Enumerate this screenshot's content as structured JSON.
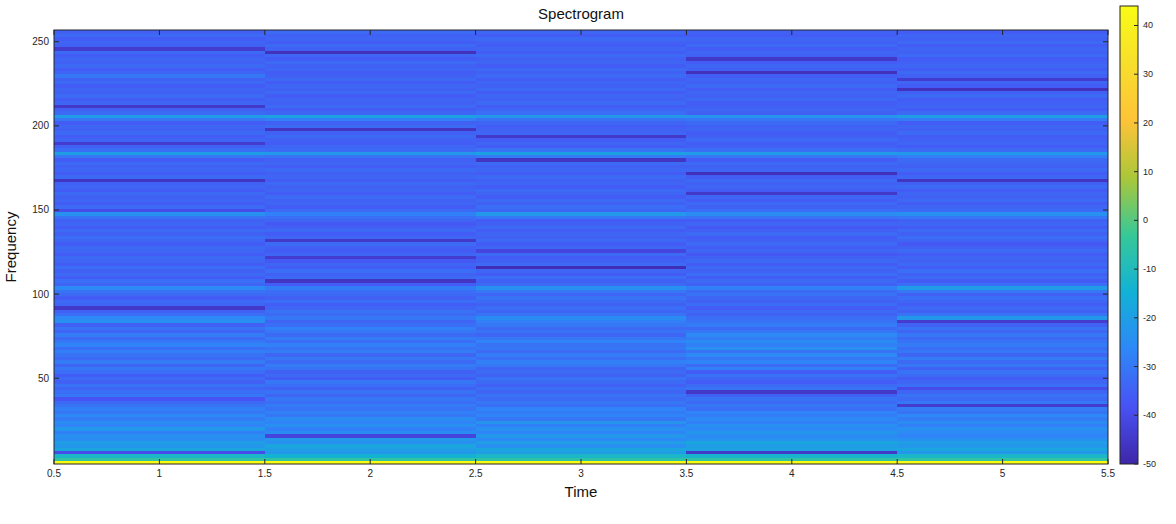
{
  "chart_data": {
    "type": "heatmap",
    "title": "Spectrogram",
    "x_label": "Time",
    "y_label": "Frequency",
    "x": [
      1,
      2,
      3,
      4,
      5
    ],
    "y": [
      0,
      2,
      4,
      6,
      8,
      10,
      12,
      14,
      16,
      18,
      20,
      22,
      24,
      26,
      28,
      30,
      32,
      34,
      36,
      38,
      40,
      42,
      44,
      46,
      48,
      50,
      52,
      54,
      56,
      58,
      60,
      62,
      64,
      66,
      68,
      70,
      72,
      74,
      76,
      78,
      80,
      82,
      84,
      86,
      88,
      90,
      92,
      94,
      96,
      98,
      100,
      102,
      104,
      106,
      108,
      110,
      112,
      114,
      116,
      118,
      120,
      122,
      124,
      126,
      128,
      130,
      132,
      134,
      136,
      138,
      140,
      142,
      144,
      146,
      148,
      150,
      152,
      154,
      156,
      158,
      160,
      162,
      164,
      166,
      168,
      170,
      172,
      174,
      176,
      178,
      180,
      182,
      184,
      186,
      188,
      190,
      192,
      194,
      196,
      198,
      200,
      202,
      204,
      206,
      208,
      210,
      212,
      214,
      216,
      218,
      220,
      222,
      224,
      226,
      228,
      230,
      232,
      234,
      236,
      238,
      240,
      242,
      244,
      246,
      248,
      250,
      252,
      254,
      256
    ],
    "z": [
      [
        44,
        44,
        44,
        44,
        44
      ],
      [
        -5,
        -5,
        -6,
        -5,
        -5
      ],
      [
        -12,
        -14,
        -12,
        -13,
        -12
      ],
      [
        -40,
        -22,
        -20,
        -45,
        -22
      ],
      [
        -18,
        -20,
        -18,
        -19,
        -18
      ],
      [
        -22,
        -18,
        -24,
        -20,
        -22
      ],
      [
        -20,
        -24,
        -20,
        -18,
        -20
      ],
      [
        -25,
        -22,
        -26,
        -24,
        -24
      ],
      [
        -24,
        -42,
        -22,
        -25,
        -27
      ],
      [
        -28,
        -25,
        -27,
        -22,
        -26
      ],
      [
        -22,
        -28,
        -24,
        -26,
        -24
      ],
      [
        -27,
        -24,
        -28,
        -24,
        -28
      ],
      [
        -25,
        -27,
        -23,
        -28,
        -25
      ],
      [
        -29,
        -25,
        -30,
        -26,
        -29
      ],
      [
        -26,
        -30,
        -27,
        -29,
        -26
      ],
      [
        -30,
        -28,
        -29,
        -27,
        -31
      ],
      [
        -28,
        -31,
        -27,
        -32,
        -29
      ],
      [
        -31,
        -29,
        -32,
        -30,
        -44
      ],
      [
        -33,
        -32,
        -30,
        -33,
        -30
      ],
      [
        -38,
        -30,
        -33,
        -31,
        -33
      ],
      [
        -30,
        -34,
        -31,
        -35,
        -31
      ],
      [
        -32,
        -31,
        -34,
        -45,
        -34
      ],
      [
        -34,
        -35,
        -32,
        -31,
        -40
      ],
      [
        -31,
        -32,
        -35,
        -33,
        -32
      ],
      [
        -35,
        -30,
        -33,
        -36,
        -34
      ],
      [
        -33,
        -36,
        -31,
        -34,
        -36
      ],
      [
        -36,
        -33,
        -35,
        -31,
        -33
      ],
      [
        -32,
        -35,
        -33,
        -36,
        -31
      ],
      [
        -30,
        -31,
        -34,
        -28,
        -35
      ],
      [
        -34,
        -29,
        -30,
        -33,
        -30
      ],
      [
        -29,
        -33,
        -28,
        -27,
        -33
      ],
      [
        -33,
        -30,
        -32,
        -30,
        -29
      ],
      [
        -31,
        -34,
        -29,
        -26,
        -34
      ],
      [
        -28,
        -29,
        -33,
        -31,
        -30
      ],
      [
        -32,
        -31,
        -30,
        -24,
        -32
      ],
      [
        -27,
        -28,
        -31,
        -28,
        -29
      ],
      [
        -30,
        -32,
        -27,
        -25,
        -31
      ],
      [
        -33,
        -29,
        -30,
        -29,
        -33
      ],
      [
        -29,
        -33,
        -34,
        -26,
        -30
      ],
      [
        -34,
        -30,
        -31,
        -30,
        -34
      ],
      [
        -31,
        -28,
        -33,
        -33,
        -31
      ],
      [
        -35,
        -32,
        -30,
        -29,
        -35
      ],
      [
        -24,
        -34,
        -28,
        -31,
        -44
      ],
      [
        -26,
        -30,
        -25,
        -32,
        -22
      ],
      [
        -32,
        -33,
        -31,
        -35,
        -31
      ],
      [
        -35,
        -31,
        -34,
        -33,
        -35
      ],
      [
        -45,
        -34,
        -32,
        -36,
        -33
      ],
      [
        -34,
        -36,
        -35,
        -32,
        -36
      ],
      [
        -33,
        -32,
        -33,
        -35,
        -34
      ],
      [
        -36,
        -35,
        -31,
        -34,
        -32
      ],
      [
        -33,
        -33,
        -34,
        -31,
        -35
      ],
      [
        -31,
        -32,
        -30,
        -33,
        -30
      ],
      [
        -26,
        -29,
        -24,
        -28,
        -21
      ],
      [
        -34,
        -36,
        -33,
        -35,
        -32
      ],
      [
        -32,
        -46,
        -35,
        -33,
        -36
      ],
      [
        -36,
        -33,
        -32,
        -36,
        -33
      ],
      [
        -33,
        -35,
        -36,
        -32,
        -35
      ],
      [
        -35,
        -32,
        -34,
        -35,
        -32
      ],
      [
        -32,
        -36,
        -48,
        -33,
        -36
      ],
      [
        -36,
        -34,
        -33,
        -36,
        -33
      ],
      [
        -34,
        -37,
        -35,
        -33,
        -35
      ],
      [
        -33,
        -44,
        -36,
        -35,
        -34
      ],
      [
        -36,
        -34,
        -33,
        -37,
        -36
      ],
      [
        -34,
        -36,
        -42,
        -34,
        -33
      ],
      [
        -33,
        -35,
        -34,
        -36,
        -35
      ],
      [
        -36,
        -33,
        -36,
        -33,
        -37
      ],
      [
        -34,
        -45,
        -33,
        -35,
        -34
      ],
      [
        -32,
        -34,
        -35,
        -36,
        -32
      ],
      [
        -35,
        -36,
        -34,
        -33,
        -35
      ],
      [
        -33,
        -33,
        -36,
        -35,
        -33
      ],
      [
        -36,
        -35,
        -33,
        -37,
        -36
      ],
      [
        -34,
        -37,
        -35,
        -34,
        -34
      ],
      [
        -35,
        -34,
        -36,
        -36,
        -35
      ],
      [
        -31,
        -32,
        -30,
        -31,
        -30
      ],
      [
        -24,
        -28,
        -22,
        -25,
        -24
      ],
      [
        -40,
        -33,
        -34,
        -32,
        -33
      ],
      [
        -33,
        -36,
        -32,
        -35,
        -34
      ],
      [
        -36,
        -34,
        -35,
        -33,
        -36
      ],
      [
        -34,
        -35,
        -33,
        -36,
        -33
      ],
      [
        -35,
        -33,
        -36,
        -34,
        -35
      ],
      [
        -33,
        -36,
        -34,
        -45,
        -34
      ],
      [
        -36,
        -34,
        -33,
        -36,
        -36
      ],
      [
        -34,
        -35,
        -36,
        -34,
        -33
      ],
      [
        -35,
        -33,
        -34,
        -35,
        -35
      ],
      [
        -46,
        -36,
        -35,
        -33,
        -46
      ],
      [
        -33,
        -34,
        -33,
        -36,
        -34
      ],
      [
        -36,
        -35,
        -36,
        -47,
        -36
      ],
      [
        -34,
        -33,
        -34,
        -34,
        -33
      ],
      [
        -35,
        -36,
        -35,
        -35,
        -35
      ],
      [
        -33,
        -34,
        -33,
        -33,
        -34
      ],
      [
        -36,
        -35,
        -46,
        -36,
        -33
      ],
      [
        -30,
        -31,
        -29,
        -30,
        -28
      ],
      [
        -20,
        -22,
        -19,
        -21,
        -22
      ],
      [
        -32,
        -33,
        -31,
        -32,
        -33
      ],
      [
        -35,
        -34,
        -36,
        -35,
        -36
      ],
      [
        -44,
        -36,
        -34,
        -36,
        -34
      ],
      [
        -34,
        -35,
        -36,
        -33,
        -35
      ],
      [
        -36,
        -33,
        -45,
        -35,
        -36
      ],
      [
        -33,
        -35,
        -34,
        -36,
        -33
      ],
      [
        -35,
        -46,
        -35,
        -34,
        -35
      ],
      [
        -34,
        -33,
        -36,
        -35,
        -34
      ],
      [
        -36,
        -35,
        -34,
        -33,
        -36
      ],
      [
        -30,
        -28,
        -31,
        -30,
        -29
      ],
      [
        -21,
        -19,
        -22,
        -23,
        -20
      ],
      [
        -33,
        -34,
        -32,
        -35,
        -33
      ],
      [
        -35,
        -36,
        -34,
        -34,
        -36
      ],
      [
        -45,
        -33,
        -36,
        -35,
        -34
      ],
      [
        -34,
        -35,
        -33,
        -36,
        -35
      ],
      [
        -36,
        -34,
        -35,
        -33,
        -36
      ],
      [
        -33,
        -36,
        -34,
        -35,
        -33
      ],
      [
        -35,
        -33,
        -36,
        -34,
        -35
      ],
      [
        -34,
        -35,
        -33,
        -36,
        -47
      ],
      [
        -36,
        -34,
        -35,
        -33,
        -36
      ],
      [
        -33,
        -36,
        -34,
        -35,
        -34
      ],
      [
        -35,
        -33,
        -36,
        -34,
        -44
      ],
      [
        -30,
        -35,
        -33,
        -36,
        -35
      ],
      [
        -34,
        -36,
        -35,
        -47,
        -33
      ],
      [
        -36,
        -34,
        -33,
        -35,
        -36
      ],
      [
        -33,
        -35,
        -36,
        -34,
        -34
      ],
      [
        -35,
        -33,
        -34,
        -36,
        -35
      ],
      [
        -34,
        -36,
        -35,
        -45,
        -36
      ],
      [
        -36,
        -34,
        -33,
        -35,
        -33
      ],
      [
        -33,
        -47,
        -36,
        -34,
        -35
      ],
      [
        -44,
        -35,
        -34,
        -36,
        -34
      ],
      [
        -35,
        -33,
        -36,
        -33,
        -36
      ],
      [
        -34,
        -36,
        -35,
        -35,
        -33
      ],
      [
        -36,
        -34,
        -33,
        -34,
        -35
      ],
      [
        -33,
        -35,
        -36,
        -36,
        -34
      ],
      [
        -35,
        -33,
        -34,
        -35,
        -36
      ]
    ],
    "xlim": [
      0.5,
      5.5
    ],
    "ylim": [
      -1,
      257
    ],
    "xticks": [
      0.5,
      1,
      1.5,
      2,
      2.5,
      3,
      3.5,
      4,
      4.5,
      5,
      5.5
    ],
    "yticks": [
      50,
      100,
      150,
      200,
      250
    ],
    "colorbar": {
      "lim": [
        -50,
        44
      ],
      "ticks": [
        -50,
        -40,
        -30,
        -20,
        -10,
        0,
        10,
        20,
        30,
        40
      ]
    }
  }
}
